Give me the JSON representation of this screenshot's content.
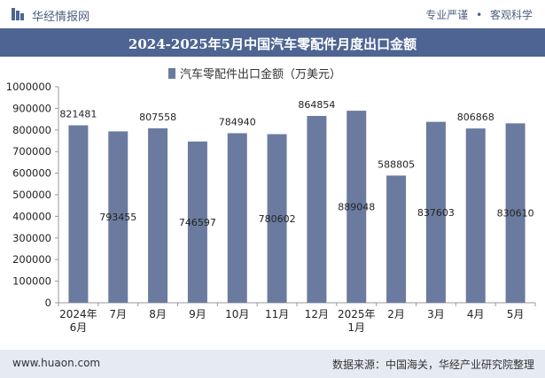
{
  "header": {
    "site_name": "华经情报网",
    "tag_1": "专业严谨",
    "tag_2": "客观科学",
    "sep": "•"
  },
  "chart_data": {
    "type": "bar",
    "title": "2024-2025年5月中国汽车零配件月度出口金额",
    "categories": [
      "2024年\n6月",
      "7月",
      "8月",
      "9月",
      "10月",
      "11月",
      "12月",
      "2025年\n1月",
      "2月",
      "3月",
      "4月",
      "5月"
    ],
    "series": [
      {
        "name": "汽车零配件出口金额（万美元）",
        "values": [
          821481,
          793455,
          807558,
          746597,
          784940,
          780602,
          864854,
          889048,
          588805,
          837603,
          806868,
          830610
        ]
      }
    ],
    "value_labels": [
      "821481",
      "793455",
      "807558",
      "746597",
      "784940",
      "780602",
      "864854",
      "889048",
      "588805",
      "837603",
      "806868",
      "830610"
    ],
    "y_ticks": [
      "0",
      "100000",
      "200000",
      "300000",
      "400000",
      "500000",
      "600000",
      "700000",
      "800000",
      "900000",
      "1000000"
    ],
    "ylim": [
      0,
      1000000
    ],
    "legend_position": "top-center",
    "colors": {
      "bar": "#6b7b9f",
      "title_bar": "#4e6493"
    }
  },
  "footer": {
    "website": "www.huaon.com",
    "source": "数据来源：中国海关，华经产业研究院整理"
  }
}
